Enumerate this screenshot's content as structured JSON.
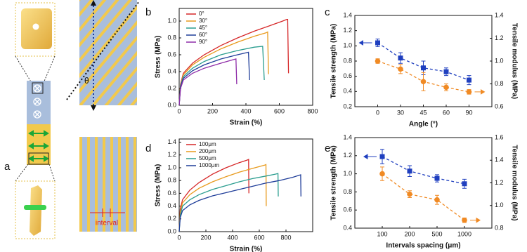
{
  "figure": {
    "panel_label": "a",
    "angle_symbol": "θ",
    "interval_label": "interval"
  },
  "chart_data": [
    {
      "type": "line",
      "panel_label": "b",
      "x_label": "Strain (%)",
      "y_label": "Stress (MPa)",
      "xlim": [
        0,
        800
      ],
      "xticks": [
        0,
        200,
        400,
        600,
        800
      ],
      "ylim": [
        0,
        1.15
      ],
      "yticks": [
        {
          "value": 0,
          "label": "0.0"
        },
        0.2,
        0.4,
        0.6,
        0.8,
        {
          "value": 1,
          "label": "1.0"
        }
      ],
      "legend": "upper left",
      "series": [
        {
          "name": "0°",
          "color": "#d62728",
          "x": [
            0,
            8,
            25,
            80,
            150,
            250,
            350,
            450,
            550,
            620,
            645,
            650,
            655
          ],
          "values": [
            0,
            0.25,
            0.38,
            0.5,
            0.6,
            0.71,
            0.8,
            0.88,
            0.95,
            1.0,
            1.02,
            1.02,
            0.38
          ]
        },
        {
          "name": "30°",
          "color": "#e89a1c",
          "x": [
            0,
            8,
            25,
            80,
            150,
            250,
            350,
            450,
            520,
            530,
            535
          ],
          "values": [
            0,
            0.24,
            0.36,
            0.48,
            0.57,
            0.67,
            0.75,
            0.82,
            0.86,
            0.87,
            0.37
          ]
        },
        {
          "name": "45°",
          "color": "#2a9d8f",
          "x": [
            0,
            8,
            25,
            80,
            150,
            250,
            350,
            450,
            500,
            510
          ],
          "values": [
            0,
            0.23,
            0.34,
            0.44,
            0.52,
            0.6,
            0.65,
            0.69,
            0.7,
            0.3
          ]
        },
        {
          "name": "60°",
          "color": "#1f3d99",
          "x": [
            0,
            8,
            25,
            80,
            150,
            250,
            350,
            415,
            422
          ],
          "values": [
            0,
            0.22,
            0.32,
            0.41,
            0.48,
            0.55,
            0.6,
            0.63,
            0.3
          ]
        },
        {
          "name": "90°",
          "color": "#8e2ca8",
          "x": [
            0,
            8,
            25,
            80,
            150,
            250,
            320,
            340,
            345
          ],
          "values": [
            0,
            0.2,
            0.3,
            0.38,
            0.44,
            0.5,
            0.54,
            0.55,
            0.25
          ]
        }
      ]
    },
    {
      "type": "line",
      "panel_label": "c",
      "x_label": "Angle (°)",
      "y_label": "Tensile strength (MPa)",
      "y2_label": "Tensile modulus (MPa)",
      "categories": [
        "0",
        "30",
        "45",
        "60",
        "90"
      ],
      "ylim": [
        0.2,
        1.4
      ],
      "yticks": [
        0.2,
        0.4,
        0.6,
        0.8,
        {
          "value": 1,
          "label": "1.0"
        },
        1.2,
        1.4
      ],
      "y2lim": [
        0.6,
        1.4
      ],
      "y2ticks": [
        0.6,
        0.8,
        {
          "value": 1,
          "label": "1.0"
        },
        1.2,
        1.4
      ],
      "series": [
        {
          "color": "#1f3fbf",
          "marker": "square",
          "linestyle": "dashed",
          "values": [
            1.04,
            0.84,
            0.71,
            0.66,
            0.55
          ],
          "errors": [
            0.05,
            0.07,
            0.09,
            0.05,
            0.06
          ]
        },
        {
          "color": "#f08a24",
          "marker": "circle",
          "linestyle": "dashed",
          "axis": "y2",
          "values": [
            1.0,
            0.93,
            0.82,
            0.77,
            0.73
          ],
          "errors": [
            0.02,
            0.04,
            0.08,
            0.03,
            0.02
          ]
        }
      ]
    },
    {
      "type": "line",
      "panel_label": "d",
      "x_label": "Strain (%)",
      "y_label": "Stress (MPa)",
      "xlim": [
        0,
        1000
      ],
      "xticks": [
        0,
        200,
        400,
        600,
        800
      ],
      "ylim": [
        0,
        1.45
      ],
      "yticks": [
        {
          "value": 0,
          "label": "0.0"
        },
        0.2,
        0.4,
        0.6,
        0.8,
        {
          "value": 1,
          "label": "1.0"
        },
        1.2,
        1.4
      ],
      "legend": "upper left",
      "series": [
        {
          "name": "100μm",
          "color": "#d62728",
          "x": [
            0,
            8,
            25,
            80,
            150,
            250,
            350,
            450,
            510,
            520,
            522
          ],
          "values": [
            0,
            0.35,
            0.5,
            0.65,
            0.77,
            0.9,
            1.0,
            1.08,
            1.12,
            1.13,
            0.6
          ]
        },
        {
          "name": "200μm",
          "color": "#e89a1c",
          "x": [
            0,
            8,
            25,
            80,
            150,
            250,
            350,
            450,
            550,
            640,
            650,
            652
          ],
          "values": [
            0,
            0.3,
            0.45,
            0.58,
            0.68,
            0.78,
            0.86,
            0.93,
            0.99,
            1.04,
            1.05,
            0.4
          ]
        },
        {
          "name": "500μm",
          "color": "#2a9d8f",
          "x": [
            0,
            8,
            25,
            80,
            150,
            250,
            350,
            450,
            550,
            650,
            720,
            740,
            742
          ],
          "values": [
            0,
            0.25,
            0.4,
            0.5,
            0.58,
            0.66,
            0.72,
            0.78,
            0.83,
            0.87,
            0.9,
            0.91,
            0.55
          ]
        },
        {
          "name": "1000μm",
          "color": "#1f3d99",
          "x": [
            0,
            8,
            25,
            80,
            150,
            250,
            350,
            450,
            550,
            650,
            750,
            850,
            910,
            912
          ],
          "values": [
            0,
            0.22,
            0.33,
            0.42,
            0.49,
            0.56,
            0.61,
            0.66,
            0.71,
            0.76,
            0.8,
            0.85,
            0.89,
            0.55
          ]
        }
      ]
    },
    {
      "type": "line",
      "panel_label": "e",
      "x_label": "Intervals spacing (μm)",
      "y_label": "Tensile strength (MPa)",
      "y2_label": "Tensile modulus (MPa)",
      "categories": [
        "100",
        "200",
        "500",
        "1000"
      ],
      "ylim": [
        0.4,
        1.4
      ],
      "yticks": [
        0.4,
        0.6,
        0.8,
        {
          "value": 1,
          "label": "1.0"
        },
        1.2,
        1.4
      ],
      "y2lim": [
        0.8,
        1.6
      ],
      "y2ticks": [
        0.8,
        {
          "value": 1,
          "label": "1.0"
        },
        1.2,
        1.4,
        1.6
      ],
      "series": [
        {
          "color": "#1f3fbf",
          "marker": "square",
          "linestyle": "dashed",
          "values": [
            1.19,
            1.03,
            0.95,
            0.89
          ],
          "errors": [
            0.08,
            0.06,
            0.04,
            0.05
          ]
        },
        {
          "color": "#f08a24",
          "marker": "circle",
          "linestyle": "dashed",
          "axis": "y2",
          "values": [
            1.28,
            1.1,
            1.05,
            0.87
          ],
          "errors": [
            0.06,
            0.03,
            0.04,
            0.02
          ]
        }
      ]
    }
  ]
}
